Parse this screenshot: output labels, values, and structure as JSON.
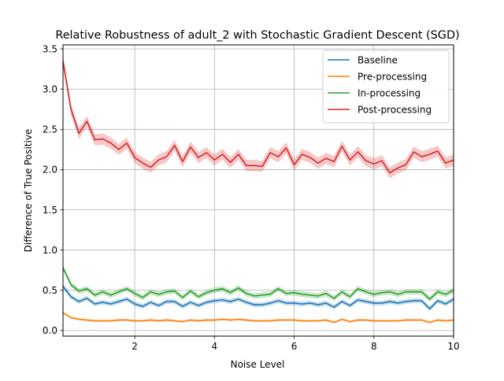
{
  "chart_data": {
    "type": "line",
    "title": "Relative Robustness of adult_2 with Stochastic Gradient Descent (SGD)",
    "xlabel": "Noise Level",
    "ylabel": "Difference of True Positive",
    "xlim": [
      0.2,
      10
    ],
    "ylim": [
      -0.07,
      3.55
    ],
    "xticks": [
      2,
      4,
      6,
      8,
      10
    ],
    "yticks": [
      0.0,
      0.5,
      1.0,
      1.5,
      2.0,
      2.5,
      3.0,
      3.5
    ],
    "ytick_labels": [
      "0.0",
      "0.5",
      "1.0",
      "1.5",
      "2.0",
      "2.5",
      "3.0",
      "3.5"
    ],
    "grid": true,
    "legend_position": "upper right",
    "x": [
      0.2,
      0.4,
      0.6,
      0.8,
      1.0,
      1.2,
      1.4,
      1.6,
      1.8,
      2.0,
      2.2,
      2.4,
      2.6,
      2.8,
      3.0,
      3.2,
      3.4,
      3.6,
      3.8,
      4.0,
      4.2,
      4.4,
      4.6,
      4.8,
      5.0,
      5.2,
      5.4,
      5.6,
      5.8,
      6.0,
      6.2,
      6.4,
      6.6,
      6.8,
      7.0,
      7.2,
      7.4,
      7.6,
      7.8,
      8.0,
      8.2,
      8.4,
      8.6,
      8.8,
      9.0,
      9.2,
      9.4,
      9.6,
      9.8,
      10.0
    ],
    "series": [
      {
        "name": "Baseline",
        "color": "#1f77b4",
        "band": 0.03,
        "values": [
          0.55,
          0.42,
          0.36,
          0.4,
          0.33,
          0.35,
          0.33,
          0.36,
          0.39,
          0.33,
          0.3,
          0.35,
          0.31,
          0.36,
          0.36,
          0.3,
          0.35,
          0.31,
          0.35,
          0.37,
          0.38,
          0.36,
          0.39,
          0.35,
          0.32,
          0.32,
          0.34,
          0.37,
          0.34,
          0.34,
          0.33,
          0.34,
          0.32,
          0.34,
          0.29,
          0.36,
          0.31,
          0.38,
          0.36,
          0.34,
          0.34,
          0.36,
          0.34,
          0.36,
          0.37,
          0.37,
          0.27,
          0.37,
          0.33,
          0.39
        ]
      },
      {
        "name": "Pre-processing",
        "color": "#ff7f0e",
        "band": 0.015,
        "values": [
          0.22,
          0.16,
          0.14,
          0.13,
          0.12,
          0.12,
          0.12,
          0.13,
          0.13,
          0.12,
          0.12,
          0.13,
          0.12,
          0.13,
          0.12,
          0.11,
          0.13,
          0.12,
          0.13,
          0.13,
          0.14,
          0.13,
          0.14,
          0.13,
          0.12,
          0.12,
          0.12,
          0.13,
          0.13,
          0.13,
          0.12,
          0.12,
          0.12,
          0.13,
          0.1,
          0.14,
          0.11,
          0.13,
          0.13,
          0.12,
          0.12,
          0.12,
          0.12,
          0.13,
          0.13,
          0.13,
          0.1,
          0.13,
          0.12,
          0.13
        ]
      },
      {
        "name": "In-processing",
        "color": "#2ca02c",
        "band": 0.035,
        "values": [
          0.78,
          0.57,
          0.49,
          0.52,
          0.44,
          0.48,
          0.44,
          0.48,
          0.52,
          0.46,
          0.41,
          0.48,
          0.45,
          0.48,
          0.49,
          0.41,
          0.49,
          0.42,
          0.47,
          0.5,
          0.52,
          0.47,
          0.53,
          0.46,
          0.43,
          0.44,
          0.45,
          0.52,
          0.46,
          0.47,
          0.45,
          0.44,
          0.43,
          0.46,
          0.4,
          0.48,
          0.42,
          0.52,
          0.48,
          0.45,
          0.47,
          0.48,
          0.45,
          0.48,
          0.48,
          0.48,
          0.39,
          0.48,
          0.45,
          0.5
        ]
      },
      {
        "name": "Post-processing",
        "color": "#d62728",
        "band": 0.07,
        "values": [
          3.35,
          2.75,
          2.45,
          2.6,
          2.37,
          2.38,
          2.33,
          2.25,
          2.33,
          2.15,
          2.08,
          2.03,
          2.12,
          2.16,
          2.3,
          2.1,
          2.28,
          2.15,
          2.21,
          2.12,
          2.19,
          2.09,
          2.19,
          2.05,
          2.05,
          2.04,
          2.21,
          2.16,
          2.27,
          2.06,
          2.19,
          2.15,
          2.08,
          2.14,
          2.1,
          2.29,
          2.12,
          2.22,
          2.11,
          2.07,
          2.11,
          1.96,
          2.02,
          2.06,
          2.22,
          2.16,
          2.19,
          2.23,
          2.08,
          2.12
        ]
      }
    ]
  }
}
